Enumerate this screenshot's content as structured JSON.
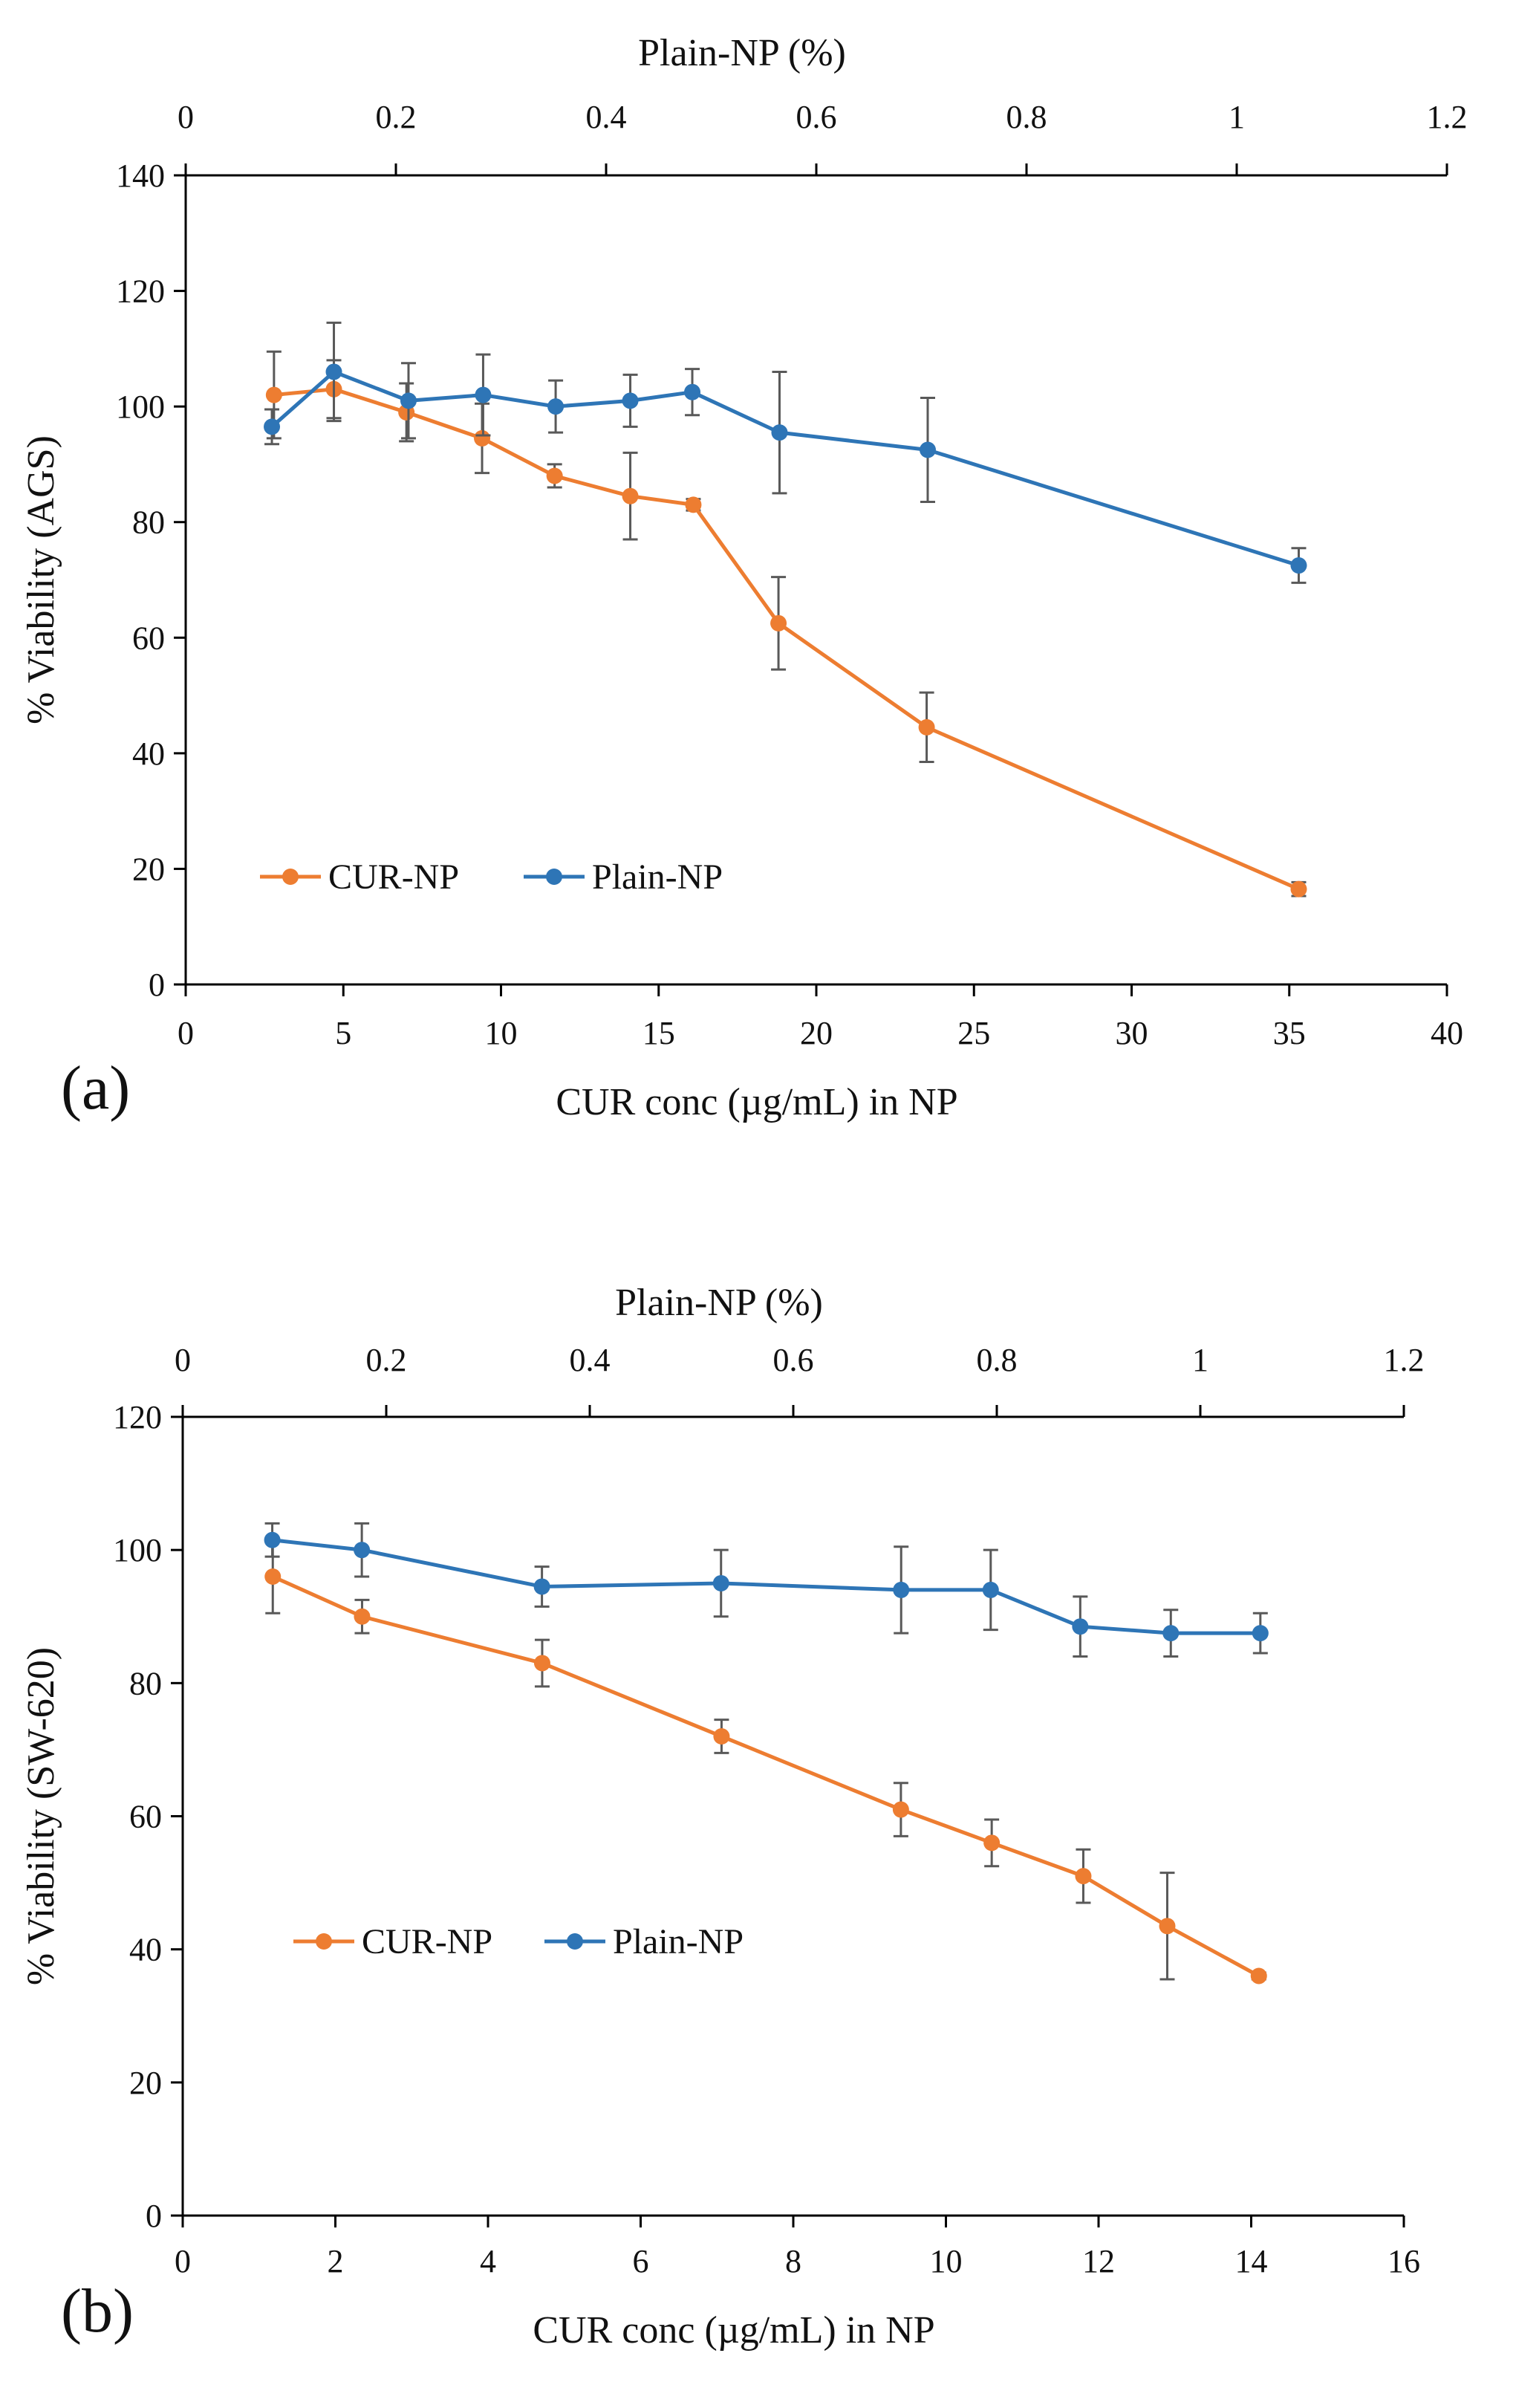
{
  "chart_data": [
    {
      "panel_label": "(a)",
      "type": "line",
      "xlabel": "CUR conc (µg/mL) in NP",
      "ylabel": "% Viability (AGS)",
      "x2label": "Plain-NP (%)",
      "xlim": [
        0,
        40
      ],
      "ylim": [
        0,
        140
      ],
      "x2lim": [
        0,
        1.2
      ],
      "xticks": [
        "0",
        "5",
        "10",
        "15",
        "20",
        "25",
        "30",
        "35",
        "40"
      ],
      "yticks": [
        "0",
        "20",
        "40",
        "60",
        "80",
        "100",
        "120",
        "140"
      ],
      "x2ticks": [
        "0",
        "0.2",
        "0.4",
        "0.6",
        "0.8",
        "1",
        "1.2"
      ],
      "legend_position": "bottom-left",
      "series": [
        {
          "name": "CUR-NP",
          "color": "#ED7D31",
          "axis": "bottom",
          "x": [
            2.8,
            4.7,
            7.0,
            9.4,
            11.7,
            14.1,
            16.1,
            18.8,
            23.5,
            35.3
          ],
          "y": [
            102,
            103,
            99,
            94.5,
            88,
            84.5,
            83,
            62.5,
            44.5,
            16.5
          ],
          "err": [
            7.5,
            5,
            5,
            6,
            2,
            7.5,
            1,
            8,
            6,
            1.2
          ]
        },
        {
          "name": "Plain-NP",
          "color": "#2E75B6",
          "axis": "top",
          "x": [
            0.082,
            0.141,
            0.212,
            0.283,
            0.352,
            0.423,
            0.482,
            0.565,
            0.706,
            1.059
          ],
          "y": [
            96.5,
            106,
            101,
            102,
            100,
            101,
            102.5,
            95.5,
            92.5,
            72.5
          ],
          "err": [
            3,
            8.5,
            6.5,
            7,
            4.5,
            4.5,
            4,
            10.5,
            9,
            3
          ]
        }
      ]
    },
    {
      "panel_label": "(b)",
      "type": "line",
      "xlabel": "CUR conc (µg/mL) in NP",
      "ylabel": "% Viability (SW-620)",
      "x2label": "Plain-NP (%)",
      "xlim": [
        0,
        16
      ],
      "ylim": [
        0,
        120
      ],
      "x2lim": [
        0,
        1.2
      ],
      "xticks": [
        "0",
        "2",
        "4",
        "6",
        "8",
        "10",
        "12",
        "14",
        "16"
      ],
      "yticks": [
        "0",
        "20",
        "40",
        "60",
        "80",
        "100",
        "120"
      ],
      "x2ticks": [
        "0",
        "0.2",
        "0.4",
        "0.6",
        "0.8",
        "1",
        "1.2"
      ],
      "legend_position": "bottom-left",
      "series": [
        {
          "name": "CUR-NP",
          "color": "#ED7D31",
          "axis": "bottom",
          "x": [
            1.18,
            2.35,
            4.71,
            7.06,
            9.41,
            10.6,
            11.8,
            12.9,
            14.1
          ],
          "y": [
            96,
            90,
            83,
            72,
            61,
            56,
            51,
            43.5,
            36
          ],
          "err": [
            5.5,
            2.5,
            3.5,
            2.5,
            4,
            3.5,
            4,
            8,
            0.5
          ]
        },
        {
          "name": "Plain-NP",
          "color": "#2E75B6",
          "axis": "top",
          "x": [
            0.088,
            0.176,
            0.353,
            0.529,
            0.706,
            0.794,
            0.882,
            0.971,
            1.059
          ],
          "y": [
            101.5,
            100,
            94.5,
            95,
            94,
            94,
            88.5,
            87.5,
            87.5
          ],
          "err": [
            2.5,
            4,
            3,
            5,
            6.5,
            6,
            4.5,
            3.5,
            3
          ]
        }
      ]
    }
  ]
}
